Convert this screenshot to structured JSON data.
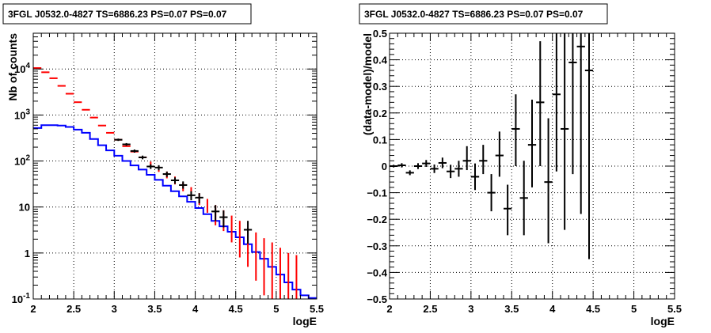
{
  "chart_data": [
    {
      "type": "histogram",
      "title": "3FGL J0532.0-4827 TS=6886.23 PS=0.07 PS=0.07",
      "xlabel": "logE",
      "ylabel": "Nb of counts",
      "xlim": [
        2,
        5.5
      ],
      "ylim": [
        0.1,
        60000
      ],
      "yscale": "log",
      "grid": true,
      "x_ticks": [
        "2",
        "2.5",
        "3",
        "3.5",
        "4",
        "4.5",
        "5",
        "5.5"
      ],
      "x_tick_values": [
        2,
        2.5,
        3,
        3.5,
        4,
        4.5,
        5,
        5.5
      ],
      "y_ticks": [
        {
          "v": 0.1,
          "b": "10",
          "e": "-1"
        },
        {
          "v": 1,
          "b": "1",
          "e": ""
        },
        {
          "v": 10,
          "b": "10",
          "e": ""
        },
        {
          "v": 100,
          "b": "10",
          "e": "2"
        },
        {
          "v": 1000,
          "b": "10",
          "e": "3"
        },
        {
          "v": 10000,
          "b": "10",
          "e": "4"
        }
      ],
      "model_color": "#0000ff",
      "model_color_name": "blue",
      "model_edges": [
        2.0,
        2.1,
        2.2,
        2.3,
        2.4,
        2.5,
        2.6,
        2.7,
        2.8,
        2.9,
        3.0,
        3.1,
        3.2,
        3.3,
        3.4,
        3.5,
        3.6,
        3.7,
        3.8,
        3.9,
        4.0,
        4.1,
        4.2,
        4.3,
        4.4,
        4.5,
        4.6,
        4.7,
        4.8,
        4.9,
        5.0,
        5.1,
        5.2,
        5.3,
        5.4,
        5.5
      ],
      "model_values": [
        520,
        600,
        600,
        590,
        550,
        480,
        410,
        300,
        220,
        170,
        130,
        100,
        80,
        65,
        50,
        39,
        29,
        22,
        17,
        13,
        9.5,
        7.0,
        5.0,
        3.8,
        2.9,
        2.2,
        1.55,
        1.05,
        0.75,
        0.5,
        0.34,
        0.23,
        0.16,
        0.12,
        0.105
      ],
      "predicted_color": "#ff0000",
      "predicted_color_name": "red",
      "predicted_markers": [
        {
          "x": 2.05,
          "y": 10500
        },
        {
          "x": 2.15,
          "y": 8500
        },
        {
          "x": 2.25,
          "y": 6300
        },
        {
          "x": 2.35,
          "y": 4300
        },
        {
          "x": 2.45,
          "y": 2900
        },
        {
          "x": 2.55,
          "y": 1900
        },
        {
          "x": 2.65,
          "y": 1300
        },
        {
          "x": 2.75,
          "y": 880
        },
        {
          "x": 2.85,
          "y": 590
        },
        {
          "x": 2.95,
          "y": 410
        },
        {
          "x": 3.05,
          "y": 290
        },
        {
          "x": 3.15,
          "y": 210
        },
        {
          "x": 3.25,
          "y": 160
        },
        {
          "x": 3.35,
          "y": 120
        }
      ],
      "predicted_errors": [
        {
          "x": 3.45,
          "y": 85,
          "lo": 75,
          "hi": 97
        },
        {
          "x": 3.55,
          "y": 67,
          "lo": 58,
          "hi": 77
        },
        {
          "x": 3.65,
          "y": 50,
          "lo": 42,
          "hi": 59
        },
        {
          "x": 3.75,
          "y": 38,
          "lo": 31,
          "hi": 46
        },
        {
          "x": 3.85,
          "y": 28,
          "lo": 22,
          "hi": 34
        },
        {
          "x": 3.95,
          "y": 21,
          "lo": 16,
          "hi": 27
        },
        {
          "x": 4.05,
          "y": 15,
          "lo": 11,
          "hi": 20
        },
        {
          "x": 4.15,
          "y": 11,
          "lo": 7.5,
          "hi": 15
        },
        {
          "x": 4.25,
          "y": 8,
          "lo": 4,
          "hi": 11
        },
        {
          "x": 4.35,
          "y": 5.6,
          "lo": 3,
          "hi": 8.5
        },
        {
          "x": 4.45,
          "y": 4,
          "lo": 1.7,
          "hi": 6.5
        },
        {
          "x": 4.55,
          "y": 2.8,
          "lo": 0.8,
          "hi": 5
        },
        {
          "x": 4.65,
          "y": 2,
          "lo": 0.5,
          "hi": 3.5
        },
        {
          "x": 4.75,
          "y": 1.45,
          "lo": 0.25,
          "hi": 2.8
        },
        {
          "x": 4.85,
          "y": 1.0,
          "lo": 0.12,
          "hi": 2.1
        },
        {
          "x": 4.95,
          "y": 0.7,
          "lo": 0.1,
          "hi": 1.7
        },
        {
          "x": 5.05,
          "y": 0.5,
          "lo": 0.1,
          "hi": 1.3
        },
        {
          "x": 5.15,
          "y": 0.35,
          "lo": 0.1,
          "hi": 1.0
        },
        {
          "x": 5.25,
          "y": 0.25,
          "lo": 0.1,
          "hi": 0.9
        }
      ],
      "data_color": "#000000",
      "data_points": [
        {
          "x": 3.05,
          "y": 290,
          "lo": 273,
          "hi": 307
        },
        {
          "x": 3.15,
          "y": 230,
          "lo": 215,
          "hi": 245
        },
        {
          "x": 3.25,
          "y": 165,
          "lo": 152,
          "hi": 178
        },
        {
          "x": 3.35,
          "y": 120,
          "lo": 109,
          "hi": 131
        },
        {
          "x": 3.45,
          "y": 76,
          "lo": 67,
          "hi": 85
        },
        {
          "x": 3.55,
          "y": 72,
          "lo": 63,
          "hi": 81
        },
        {
          "x": 3.65,
          "y": 52,
          "lo": 45,
          "hi": 59
        },
        {
          "x": 3.75,
          "y": 38,
          "lo": 32,
          "hi": 44
        },
        {
          "x": 3.85,
          "y": 30,
          "lo": 25,
          "hi": 36
        },
        {
          "x": 3.95,
          "y": 18,
          "lo": 14,
          "hi": 22
        },
        {
          "x": 4.05,
          "y": 16,
          "lo": 12,
          "hi": 20
        },
        {
          "x": 4.25,
          "y": 8,
          "lo": 5,
          "hi": 11
        },
        {
          "x": 4.35,
          "y": 6,
          "lo": 3.6,
          "hi": 8.4
        },
        {
          "x": 4.65,
          "y": 3.2,
          "lo": 1.6,
          "hi": 5
        }
      ]
    },
    {
      "type": "scatter",
      "title": "3FGL J0532.0-4827 TS=6886.23 PS=0.07 PS=0.07",
      "xlabel": "logE",
      "ylabel": "(data-model)/model",
      "xlim": [
        2,
        5.5
      ],
      "ylim": [
        -0.5,
        0.5
      ],
      "grid": true,
      "x_ticks": [
        "2",
        "2.5",
        "3",
        "3.5",
        "4",
        "4.5",
        "5",
        "5.5"
      ],
      "x_tick_values": [
        2,
        2.5,
        3,
        3.5,
        4,
        4.5,
        5,
        5.5
      ],
      "y_ticks": [
        "−0.5",
        "−0.4",
        "−0.3",
        "−0.2",
        "−0.1",
        "0",
        "0.1",
        "0.2",
        "0.3",
        "0.4",
        "0.5"
      ],
      "y_tick_values": [
        -0.5,
        -0.4,
        -0.3,
        -0.2,
        -0.1,
        0,
        0.1,
        0.2,
        0.3,
        0.4,
        0.5
      ],
      "points": [
        {
          "x": 2.05,
          "y": 0.0,
          "lo": -0.005,
          "hi": 0.005
        },
        {
          "x": 2.15,
          "y": 0.003,
          "lo": -0.005,
          "hi": 0.011
        },
        {
          "x": 2.25,
          "y": -0.025,
          "lo": -0.034,
          "hi": -0.016
        },
        {
          "x": 2.35,
          "y": 0.0,
          "lo": -0.011,
          "hi": 0.011
        },
        {
          "x": 2.45,
          "y": 0.01,
          "lo": -0.003,
          "hi": 0.023
        },
        {
          "x": 2.55,
          "y": -0.01,
          "lo": -0.026,
          "hi": 0.006
        },
        {
          "x": 2.65,
          "y": 0.012,
          "lo": -0.008,
          "hi": 0.032
        },
        {
          "x": 2.75,
          "y": -0.02,
          "lo": -0.045,
          "hi": 0.005
        },
        {
          "x": 2.85,
          "y": -0.01,
          "lo": -0.04,
          "hi": 0.02
        },
        {
          "x": 2.95,
          "y": 0.02,
          "lo": -0.015,
          "hi": 0.075
        },
        {
          "x": 3.05,
          "y": -0.04,
          "lo": -0.09,
          "hi": 0.01
        },
        {
          "x": 3.15,
          "y": 0.02,
          "lo": -0.03,
          "hi": 0.08
        },
        {
          "x": 3.25,
          "y": -0.1,
          "lo": -0.17,
          "hi": -0.03
        },
        {
          "x": 3.35,
          "y": 0.04,
          "lo": -0.04,
          "hi": 0.13
        },
        {
          "x": 3.45,
          "y": -0.16,
          "lo": -0.26,
          "hi": -0.07
        },
        {
          "x": 3.55,
          "y": 0.14,
          "lo": 0.0,
          "hi": 0.27
        },
        {
          "x": 3.65,
          "y": -0.12,
          "lo": -0.26,
          "hi": 0.02
        },
        {
          "x": 3.75,
          "y": 0.08,
          "lo": -0.08,
          "hi": 0.25
        },
        {
          "x": 3.85,
          "y": 0.24,
          "lo": 0.0,
          "hi": 0.47
        },
        {
          "x": 3.95,
          "y": -0.06,
          "lo": -0.29,
          "hi": 0.18
        },
        {
          "x": 4.05,
          "y": 0.27,
          "lo": -0.02,
          "hi": 0.5
        },
        {
          "x": 4.15,
          "y": 0.14,
          "lo": -0.24,
          "hi": 0.5
        },
        {
          "x": 4.25,
          "y": 0.39,
          "lo": -0.03,
          "hi": 0.5
        },
        {
          "x": 4.35,
          "y": 0.45,
          "lo": -0.18,
          "hi": 0.5
        },
        {
          "x": 4.45,
          "y": 0.36,
          "lo": -0.35,
          "hi": 0.5
        }
      ]
    }
  ]
}
